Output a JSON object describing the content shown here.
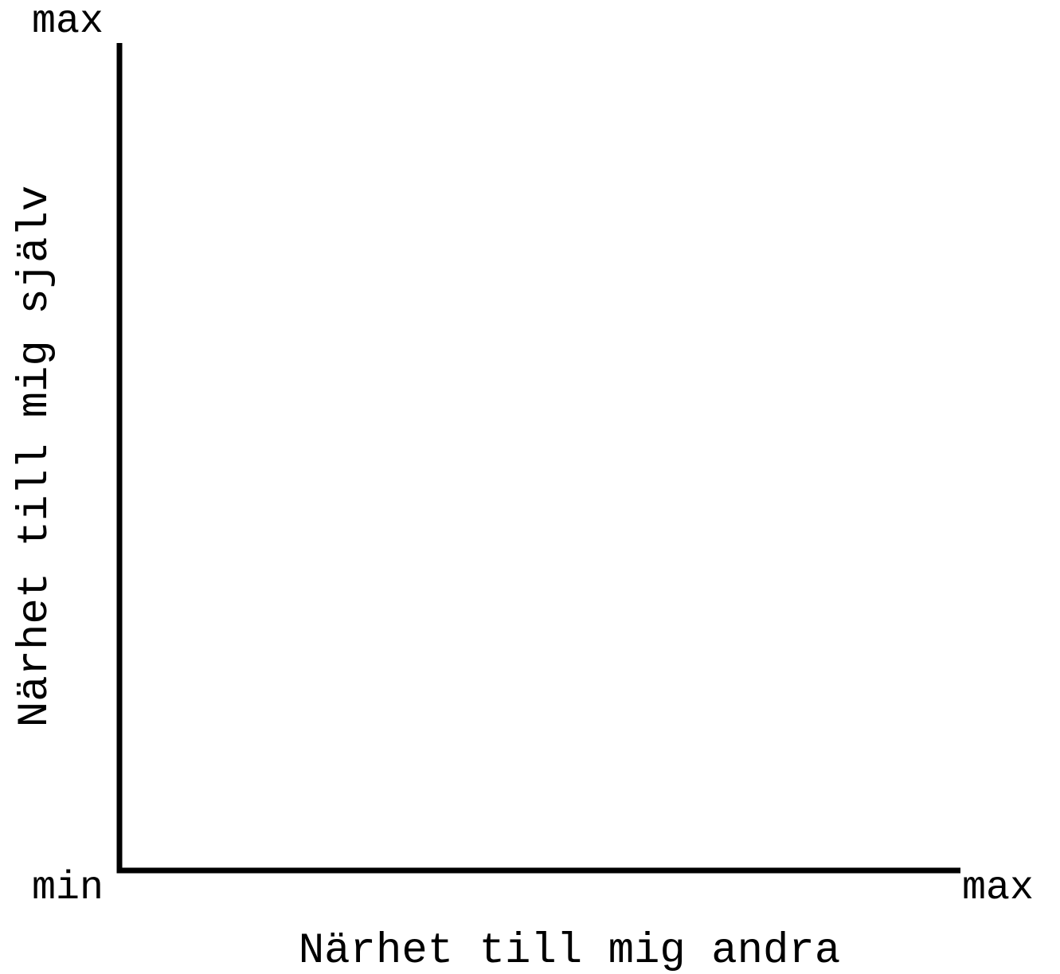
{
  "diagram": {
    "x_axis": {
      "label": "Närhet till mig andra",
      "min_label": "min",
      "max_label": "max"
    },
    "y_axis": {
      "label": "Närhet till mig själv",
      "max_label": "max"
    },
    "colors": {
      "axis": "#000000",
      "background": "#ffffff"
    }
  }
}
